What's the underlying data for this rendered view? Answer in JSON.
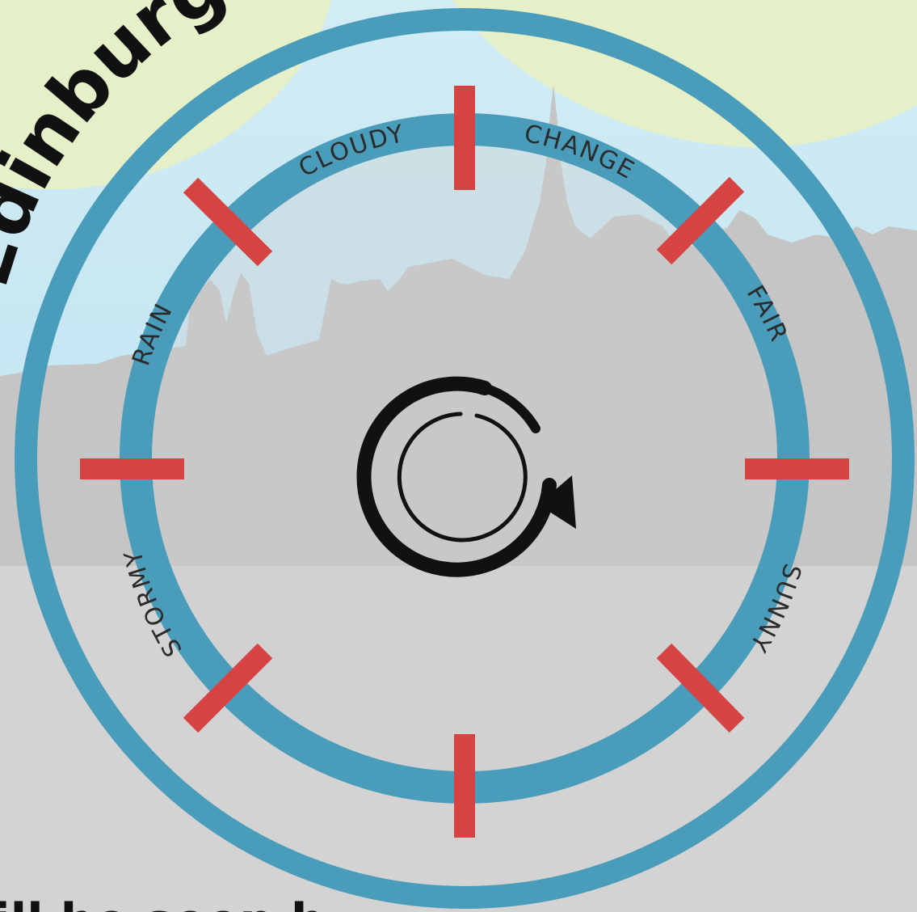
{
  "title": "Edinburgh's Dial",
  "footer_fragment": "ill be seen b",
  "labels": {
    "cloudy": "CLOUDY",
    "change": "CHANGE",
    "fair": "FAIR",
    "sunny": "SUNNY",
    "stormy": "STORMY",
    "rain": "RAIN"
  },
  "center_icon": "rotate-arrow-icon",
  "colors": {
    "ring": "#4a9cbb",
    "tick": "#d64343",
    "skyline": "#c5c5c5",
    "sky": "#c6e7f3",
    "hill": "#e6f0c8"
  }
}
